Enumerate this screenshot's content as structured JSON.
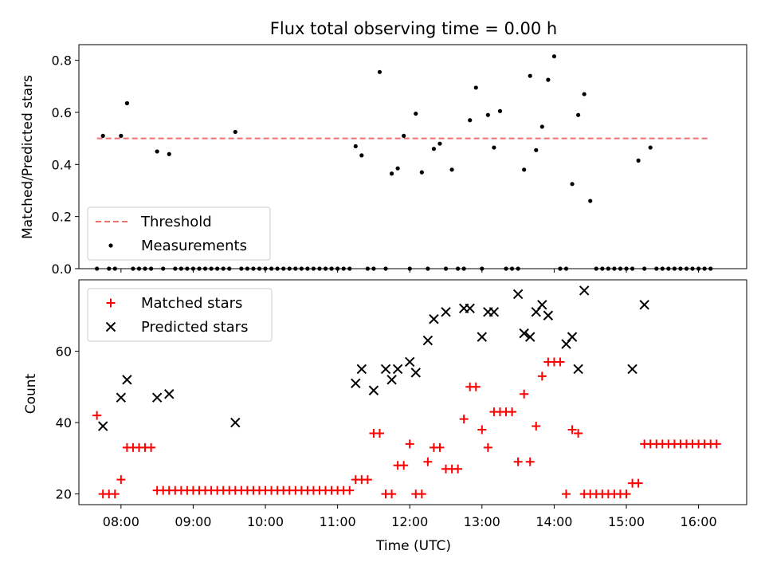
{
  "chart_data": [
    {
      "type": "scatter",
      "title": "Flux total observing time = 0.00 h",
      "xlabel": "",
      "ylabel": "Matched/Predicted stars",
      "xlim": [
        "07:25",
        "16:40"
      ],
      "ylim": [
        0,
        0.86
      ],
      "y_ticks": [
        0.0,
        0.2,
        0.4,
        0.6,
        0.8
      ],
      "y_tick_labels": [
        "0.0",
        "0.2",
        "0.4",
        "0.6",
        "0.8"
      ],
      "grid": false,
      "legend": "lower-left",
      "threshold": {
        "name": "Threshold",
        "value": 0.5,
        "x_start": "07:40",
        "x_end": "16:10",
        "color": "#f07070"
      },
      "series": [
        {
          "name": "Measurements",
          "color": "#000000",
          "marker": "dot",
          "points": [
            [
              "07:40",
              0
            ],
            [
              "07:45",
              0.51
            ],
            [
              "07:50",
              0
            ],
            [
              "07:55",
              0
            ],
            [
              "08:00",
              0.51
            ],
            [
              "08:05",
              0.635
            ],
            [
              "08:10",
              0
            ],
            [
              "08:15",
              0
            ],
            [
              "08:20",
              0
            ],
            [
              "08:25",
              0
            ],
            [
              "08:30",
              0.45
            ],
            [
              "08:35",
              0
            ],
            [
              "08:40",
              0.44
            ],
            [
              "08:45",
              0
            ],
            [
              "08:50",
              0
            ],
            [
              "08:55",
              0
            ],
            [
              "09:00",
              0
            ],
            [
              "09:05",
              0
            ],
            [
              "09:10",
              0
            ],
            [
              "09:15",
              0
            ],
            [
              "09:20",
              0
            ],
            [
              "09:25",
              0
            ],
            [
              "09:30",
              0
            ],
            [
              "09:35",
              0.525
            ],
            [
              "09:40",
              0
            ],
            [
              "09:45",
              0
            ],
            [
              "09:50",
              0
            ],
            [
              "09:55",
              0
            ],
            [
              "10:00",
              0
            ],
            [
              "10:05",
              0
            ],
            [
              "10:10",
              0
            ],
            [
              "10:15",
              0
            ],
            [
              "10:20",
              0
            ],
            [
              "10:25",
              0
            ],
            [
              "10:30",
              0
            ],
            [
              "10:35",
              0
            ],
            [
              "10:40",
              0
            ],
            [
              "10:45",
              0
            ],
            [
              "10:50",
              0
            ],
            [
              "10:55",
              0
            ],
            [
              "11:00",
              0
            ],
            [
              "11:05",
              0
            ],
            [
              "11:10",
              0
            ],
            [
              "11:15",
              0.47
            ],
            [
              "11:20",
              0.435
            ],
            [
              "11:25",
              0
            ],
            [
              "11:30",
              0
            ],
            [
              "11:35",
              0.755
            ],
            [
              "11:40",
              0
            ],
            [
              "11:45",
              0.365
            ],
            [
              "11:50",
              0.385
            ],
            [
              "11:55",
              0.51
            ],
            [
              "12:00",
              0
            ],
            [
              "12:05",
              0.595
            ],
            [
              "12:10",
              0.37
            ],
            [
              "12:15",
              0
            ],
            [
              "12:20",
              0.46
            ],
            [
              "12:25",
              0.48
            ],
            [
              "12:30",
              0
            ],
            [
              "12:35",
              0.38
            ],
            [
              "12:40",
              0
            ],
            [
              "12:45",
              0
            ],
            [
              "12:50",
              0.57
            ],
            [
              "12:55",
              0.695
            ],
            [
              "13:00",
              0
            ],
            [
              "13:05",
              0.59
            ],
            [
              "13:10",
              0.465
            ],
            [
              "13:15",
              0.605
            ],
            [
              "13:20",
              0
            ],
            [
              "13:25",
              0
            ],
            [
              "13:30",
              0
            ],
            [
              "13:35",
              0.38
            ],
            [
              "13:40",
              0.74
            ],
            [
              "13:45",
              0.455
            ],
            [
              "13:50",
              0.545
            ],
            [
              "13:55",
              0.725
            ],
            [
              "14:00",
              0.815
            ],
            [
              "14:05",
              0
            ],
            [
              "14:10",
              0
            ],
            [
              "14:15",
              0.325
            ],
            [
              "14:20",
              0.59
            ],
            [
              "14:25",
              0.67
            ],
            [
              "14:30",
              0.26
            ],
            [
              "14:35",
              0
            ],
            [
              "14:40",
              0
            ],
            [
              "14:45",
              0
            ],
            [
              "14:50",
              0
            ],
            [
              "14:55",
              0
            ],
            [
              "15:00",
              0
            ],
            [
              "15:05",
              0
            ],
            [
              "15:10",
              0.415
            ],
            [
              "15:15",
              0
            ],
            [
              "15:20",
              0.465
            ],
            [
              "15:25",
              0
            ],
            [
              "15:30",
              0
            ],
            [
              "15:35",
              0
            ],
            [
              "15:40",
              0
            ],
            [
              "15:45",
              0
            ],
            [
              "15:50",
              0
            ],
            [
              "15:55",
              0
            ],
            [
              "16:00",
              0
            ],
            [
              "16:05",
              0
            ],
            [
              "16:10",
              0
            ]
          ]
        }
      ]
    },
    {
      "type": "scatter",
      "title": "",
      "xlabel": "Time (UTC)",
      "ylabel": "Count",
      "xlim": [
        "07:25",
        "16:40"
      ],
      "ylim": [
        17,
        80
      ],
      "y_ticks": [
        20,
        40,
        60
      ],
      "y_tick_labels": [
        "20",
        "40",
        "60"
      ],
      "x_ticks": [
        "08:00",
        "09:00",
        "10:00",
        "11:00",
        "12:00",
        "13:00",
        "14:00",
        "15:00",
        "16:00"
      ],
      "x_tick_labels": [
        "08:00",
        "09:00",
        "10:00",
        "11:00",
        "12:00",
        "13:00",
        "14:00",
        "15:00",
        "16:00"
      ],
      "grid": false,
      "legend": "upper-left",
      "series": [
        {
          "name": "Matched stars",
          "color": "#ff0000",
          "marker": "plus",
          "points": [
            [
              "07:40",
              42
            ],
            [
              "07:45",
              20
            ],
            [
              "07:50",
              20
            ],
            [
              "07:55",
              20
            ],
            [
              "08:00",
              24
            ],
            [
              "08:05",
              33
            ],
            [
              "08:10",
              33
            ],
            [
              "08:15",
              33
            ],
            [
              "08:20",
              33
            ],
            [
              "08:25",
              33
            ],
            [
              "08:30",
              21
            ],
            [
              "08:35",
              21
            ],
            [
              "08:40",
              21
            ],
            [
              "08:45",
              21
            ],
            [
              "08:50",
              21
            ],
            [
              "08:55",
              21
            ],
            [
              "09:00",
              21
            ],
            [
              "09:05",
              21
            ],
            [
              "09:10",
              21
            ],
            [
              "09:15",
              21
            ],
            [
              "09:20",
              21
            ],
            [
              "09:25",
              21
            ],
            [
              "09:30",
              21
            ],
            [
              "09:35",
              21
            ],
            [
              "09:40",
              21
            ],
            [
              "09:45",
              21
            ],
            [
              "09:50",
              21
            ],
            [
              "09:55",
              21
            ],
            [
              "10:00",
              21
            ],
            [
              "10:05",
              21
            ],
            [
              "10:10",
              21
            ],
            [
              "10:15",
              21
            ],
            [
              "10:20",
              21
            ],
            [
              "10:25",
              21
            ],
            [
              "10:30",
              21
            ],
            [
              "10:35",
              21
            ],
            [
              "10:40",
              21
            ],
            [
              "10:45",
              21
            ],
            [
              "10:50",
              21
            ],
            [
              "10:55",
              21
            ],
            [
              "11:00",
              21
            ],
            [
              "11:05",
              21
            ],
            [
              "11:10",
              21
            ],
            [
              "11:15",
              24
            ],
            [
              "11:20",
              24
            ],
            [
              "11:25",
              24
            ],
            [
              "11:30",
              37
            ],
            [
              "11:35",
              37
            ],
            [
              "11:40",
              20
            ],
            [
              "11:45",
              20
            ],
            [
              "11:50",
              28
            ],
            [
              "11:55",
              28
            ],
            [
              "12:00",
              34
            ],
            [
              "12:05",
              20
            ],
            [
              "12:10",
              20
            ],
            [
              "12:15",
              29
            ],
            [
              "12:20",
              33
            ],
            [
              "12:25",
              33
            ],
            [
              "12:30",
              27
            ],
            [
              "12:35",
              27
            ],
            [
              "12:40",
              27
            ],
            [
              "12:45",
              41
            ],
            [
              "12:50",
              50
            ],
            [
              "12:55",
              50
            ],
            [
              "13:00",
              38
            ],
            [
              "13:05",
              33
            ],
            [
              "13:10",
              43
            ],
            [
              "13:15",
              43
            ],
            [
              "13:20",
              43
            ],
            [
              "13:25",
              43
            ],
            [
              "13:30",
              29
            ],
            [
              "13:35",
              48
            ],
            [
              "13:40",
              29
            ],
            [
              "13:45",
              39
            ],
            [
              "13:50",
              53
            ],
            [
              "13:55",
              57
            ],
            [
              "14:00",
              57
            ],
            [
              "14:05",
              57
            ],
            [
              "14:10",
              20
            ],
            [
              "14:15",
              38
            ],
            [
              "14:20",
              37
            ],
            [
              "14:25",
              20
            ],
            [
              "14:30",
              20
            ],
            [
              "14:35",
              20
            ],
            [
              "14:40",
              20
            ],
            [
              "14:45",
              20
            ],
            [
              "14:50",
              20
            ],
            [
              "14:55",
              20
            ],
            [
              "15:00",
              20
            ],
            [
              "15:05",
              23
            ],
            [
              "15:10",
              23
            ],
            [
              "15:15",
              34
            ],
            [
              "15:20",
              34
            ],
            [
              "15:25",
              34
            ],
            [
              "15:30",
              34
            ],
            [
              "15:35",
              34
            ],
            [
              "15:40",
              34
            ],
            [
              "15:45",
              34
            ],
            [
              "15:50",
              34
            ],
            [
              "15:55",
              34
            ],
            [
              "16:00",
              34
            ],
            [
              "16:05",
              34
            ],
            [
              "16:10",
              34
            ],
            [
              "16:15",
              34
            ]
          ]
        },
        {
          "name": "Predicted stars",
          "color": "#000000",
          "marker": "x",
          "points": [
            [
              "07:45",
              39
            ],
            [
              "08:00",
              47
            ],
            [
              "08:05",
              52
            ],
            [
              "08:30",
              47
            ],
            [
              "08:40",
              48
            ],
            [
              "09:35",
              40
            ],
            [
              "11:15",
              51
            ],
            [
              "11:20",
              55
            ],
            [
              "11:30",
              49
            ],
            [
              "11:40",
              55
            ],
            [
              "11:45",
              52
            ],
            [
              "11:50",
              55
            ],
            [
              "12:00",
              57
            ],
            [
              "12:05",
              54
            ],
            [
              "12:15",
              63
            ],
            [
              "12:20",
              69
            ],
            [
              "12:30",
              71
            ],
            [
              "12:45",
              72
            ],
            [
              "12:50",
              72
            ],
            [
              "13:00",
              64
            ],
            [
              "13:05",
              71
            ],
            [
              "13:10",
              71
            ],
            [
              "13:30",
              76
            ],
            [
              "13:35",
              65
            ],
            [
              "13:40",
              64
            ],
            [
              "13:45",
              71
            ],
            [
              "13:50",
              73
            ],
            [
              "13:55",
              70
            ],
            [
              "14:10",
              62
            ],
            [
              "14:15",
              64
            ],
            [
              "14:20",
              55
            ],
            [
              "14:25",
              77
            ],
            [
              "15:05",
              55
            ],
            [
              "15:15",
              73
            ]
          ]
        }
      ]
    }
  ]
}
